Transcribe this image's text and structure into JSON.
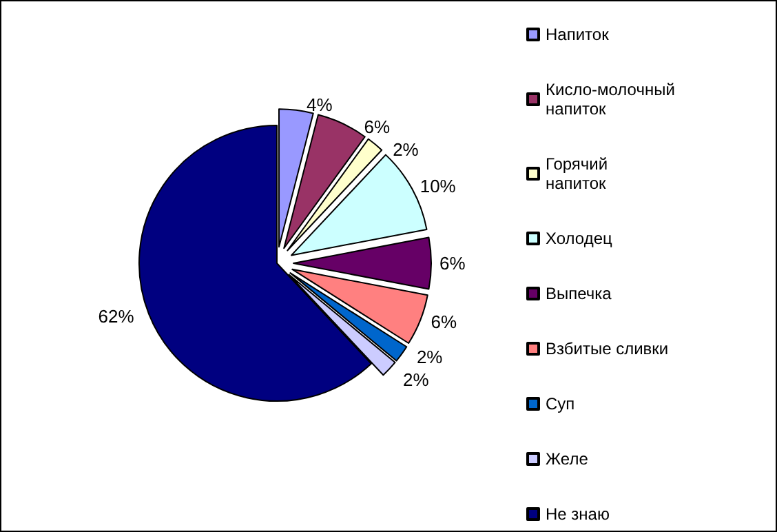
{
  "chart_data": {
    "type": "pie",
    "categories": [
      "Напиток",
      "Кисло-молочный напиток",
      "Горячий напиток",
      "Холодец",
      "Выпечка",
      "Взбитые сливки",
      "Суп",
      "Желе",
      "Не знаю"
    ],
    "values": [
      4,
      6,
      2,
      10,
      6,
      6,
      2,
      2,
      62
    ],
    "colors": [
      "#9999ff",
      "#993366",
      "#ffffcc",
      "#ccffff",
      "#660066",
      "#ff8080",
      "#0066cc",
      "#ccccff",
      "#000080"
    ],
    "value_labels": [
      "4%",
      "6%",
      "2%",
      "10%",
      "6%",
      "6%",
      "2%",
      "2%",
      "62%"
    ],
    "legend": "right"
  }
}
